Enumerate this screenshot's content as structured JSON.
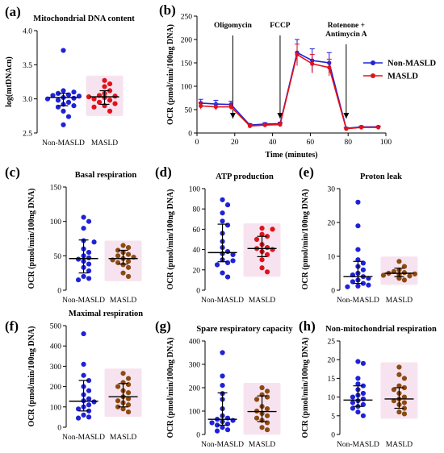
{
  "colors": {
    "blue": "#1f22d6",
    "red": "#e0121a",
    "brown": "#8b4a12",
    "pink_bg": "#f7e3ef"
  },
  "chart_data": [
    {
      "id": "a",
      "type": "scatter",
      "letter": "(a)",
      "title": "Mitochondrial DNA content",
      "ylabel": "log(mtDNAcn)",
      "ylim": [
        2.5,
        4.0
      ],
      "yticks": [
        2.5,
        3.0,
        3.5,
        4.0
      ],
      "tick_decimals": 1,
      "categories": [
        "Non-MASLD",
        "MASLD"
      ],
      "series": [
        {
          "values": [
            3.71,
            3.12,
            3.1,
            3.08,
            3.06,
            3.05,
            3.04,
            3.02,
            3.01,
            3.0,
            2.98,
            2.95,
            2.92,
            2.9,
            2.88,
            2.82,
            2.74,
            2.62
          ],
          "median": 3.02,
          "iqr": [
            2.9,
            3.08
          ],
          "color": "blue"
        },
        {
          "values": [
            3.27,
            3.22,
            3.18,
            3.12,
            3.08,
            3.05,
            3.04,
            3.03,
            3.02,
            3.0,
            2.98,
            2.95,
            2.93,
            2.9,
            2.88,
            2.82
          ],
          "median": 3.03,
          "iqr": [
            2.92,
            3.12
          ],
          "color": "red",
          "bg": true
        }
      ]
    },
    {
      "id": "b",
      "type": "line",
      "letter": "(b)",
      "ylabel": "OCR (pmol/min/100ng DNA)",
      "xlabel": "Time (minutes)",
      "xlim": [
        0,
        100
      ],
      "xticks": [
        0,
        20,
        40,
        60,
        80,
        100
      ],
      "ylim": [
        0,
        250
      ],
      "yticks": [
        0,
        50,
        100,
        150,
        200,
        250
      ],
      "tick_decimals": 0,
      "x": [
        2,
        10,
        18,
        28,
        36,
        44,
        53,
        61,
        70,
        79,
        87,
        96
      ],
      "series": [
        {
          "name": "Non-MASLD",
          "color": "blue",
          "values": [
            64,
            62,
            61,
            17,
            19,
            20,
            172,
            155,
            150,
            10,
            13,
            13
          ],
          "err": [
            8,
            8,
            7,
            3,
            3,
            3,
            28,
            25,
            22,
            2,
            2,
            2
          ]
        },
        {
          "name": "MASLD",
          "color": "red",
          "values": [
            58,
            56,
            56,
            15,
            17,
            18,
            168,
            148,
            140,
            9,
            12,
            12
          ],
          "err": [
            7,
            7,
            6,
            3,
            3,
            3,
            22,
            20,
            18,
            2,
            2,
            2
          ]
        }
      ],
      "annotations": [
        {
          "lines": [
            "Oligomycin"
          ],
          "x": 19
        },
        {
          "lines": [
            "FCCP"
          ],
          "x": 44
        },
        {
          "lines": [
            "Rotenone +",
            "Antimycin A"
          ],
          "x": 79
        }
      ]
    },
    {
      "id": "c",
      "type": "scatter",
      "letter": "(c)",
      "title": "Basal respiration",
      "ylabel": "OCR (pmol/min/100ng DNA)",
      "ylim": [
        0,
        150
      ],
      "yticks": [
        0,
        50,
        100,
        150
      ],
      "tick_decimals": 0,
      "categories": [
        "Non-MASLD",
        "MASLD"
      ],
      "series": [
        {
          "values": [
            106,
            100,
            90,
            72,
            70,
            60,
            55,
            50,
            47,
            45,
            42,
            38,
            33,
            28,
            20,
            17,
            15
          ],
          "median": 46,
          "iqr": [
            25,
            73
          ],
          "color": "blue"
        },
        {
          "values": [
            65,
            62,
            58,
            55,
            52,
            50,
            48,
            46,
            44,
            42,
            40,
            37,
            33,
            25,
            20
          ],
          "median": 46,
          "iqr": [
            38,
            58
          ],
          "color": "brown",
          "bg": true
        }
      ]
    },
    {
      "id": "d",
      "type": "scatter",
      "letter": "(d)",
      "title": "ATP production",
      "ylabel": "OCR (pmol/min/100ng DNA)",
      "ylim": [
        0,
        100
      ],
      "yticks": [
        0,
        20,
        40,
        60,
        80,
        100
      ],
      "tick_decimals": 0,
      "categories": [
        "Non-MASLD",
        "MASLD"
      ],
      "series": [
        {
          "values": [
            89,
            84,
            76,
            68,
            64,
            56,
            48,
            42,
            38,
            36,
            35,
            30,
            29,
            27,
            25,
            17,
            13
          ],
          "median": 37,
          "iqr": [
            28,
            65
          ],
          "color": "blue"
        },
        {
          "values": [
            61,
            60,
            55,
            53,
            50,
            45,
            42,
            41,
            40,
            38,
            35,
            30,
            22,
            18
          ],
          "median": 41,
          "iqr": [
            33,
            53
          ],
          "color": "red",
          "bg": true
        }
      ]
    },
    {
      "id": "e",
      "type": "scatter",
      "letter": "(e)",
      "title": "Proton leak",
      "ylabel": "OCR (pmol/min/100ng DNA)",
      "ylim": [
        0,
        30
      ],
      "yticks": [
        0,
        10,
        20,
        30
      ],
      "tick_decimals": 0,
      "categories": [
        "Non-MASLD",
        "MASLD"
      ],
      "series": [
        {
          "values": [
            26,
            19,
            12,
            9,
            8,
            7,
            6,
            5,
            4.5,
            4,
            3.5,
            3,
            2.5,
            2,
            1.5,
            1.2,
            1
          ],
          "median": 4,
          "iqr": [
            2,
            8.5
          ],
          "color": "blue"
        },
        {
          "values": [
            8.5,
            7,
            6,
            5.5,
            5.2,
            5,
            4.8,
            4.6,
            4.4,
            4.2,
            4,
            3.8,
            3.5,
            3
          ],
          "median": 5,
          "iqr": [
            4,
            6.5
          ],
          "color": "brown",
          "bg": true
        }
      ]
    },
    {
      "id": "f",
      "type": "scatter",
      "letter": "(f)",
      "title": "Maximal respiration",
      "ylabel": "OCR (pmol/min/100ng DNA)",
      "ylim": [
        0,
        500
      ],
      "yticks": [
        0,
        100,
        200,
        300,
        400,
        500
      ],
      "tick_decimals": 0,
      "categories": [
        "Non-MASLD",
        "MASLD"
      ],
      "series": [
        {
          "values": [
            460,
            310,
            255,
            230,
            200,
            180,
            160,
            140,
            130,
            125,
            110,
            100,
            90,
            80,
            60,
            50,
            45
          ],
          "median": 128,
          "iqr": [
            80,
            230
          ],
          "color": "blue"
        },
        {
          "values": [
            265,
            240,
            220,
            210,
            200,
            180,
            170,
            150,
            140,
            130,
            120,
            110,
            100,
            90,
            75
          ],
          "median": 150,
          "iqr": [
            100,
            215
          ],
          "color": "brown",
          "bg": true
        }
      ]
    },
    {
      "id": "g",
      "type": "scatter",
      "letter": "(g)",
      "title": "Spare respiratory capacity",
      "ylabel": "OCR (pmol/min/100ng DNA)",
      "ylim": [
        0,
        400
      ],
      "yticks": [
        0,
        100,
        200,
        300,
        400
      ],
      "tick_decimals": 0,
      "categories": [
        "Non-MASLD",
        "MASLD"
      ],
      "series": [
        {
          "values": [
            350,
            250,
            210,
            175,
            150,
            110,
            80,
            70,
            65,
            60,
            55,
            50,
            45,
            40,
            30,
            20,
            15
          ],
          "median": 65,
          "iqr": [
            40,
            178
          ],
          "color": "blue"
        },
        {
          "values": [
            200,
            185,
            170,
            160,
            150,
            120,
            110,
            100,
            90,
            80,
            70,
            60,
            50,
            30,
            20
          ],
          "median": 98,
          "iqr": [
            55,
            165
          ],
          "color": "brown",
          "bg": true
        }
      ]
    },
    {
      "id": "h",
      "type": "scatter",
      "letter": "(h)",
      "title": "Non-mitochondrial respiration",
      "ylabel": "OCR (pmol/min/100ng DNA)",
      "ylim": [
        0,
        25
      ],
      "yticks": [
        0,
        5,
        10,
        15,
        20,
        25
      ],
      "tick_decimals": 0,
      "categories": [
        "Non-MASLD",
        "MASLD"
      ],
      "series": [
        {
          "values": [
            19.5,
            19,
            15,
            13.5,
            13,
            12,
            11,
            10.5,
            10,
            9.5,
            9,
            8.5,
            8,
            7.5,
            7,
            6,
            5
          ],
          "median": 9.2,
          "iqr": [
            7.5,
            13
          ],
          "color": "blue"
        },
        {
          "values": [
            18,
            16,
            15,
            13,
            12.5,
            12,
            11,
            10,
            9.5,
            9,
            8.5,
            8,
            7,
            6,
            5.5
          ],
          "median": 9.5,
          "iqr": [
            7,
            12.5
          ],
          "color": "brown",
          "bg": true
        }
      ]
    }
  ]
}
